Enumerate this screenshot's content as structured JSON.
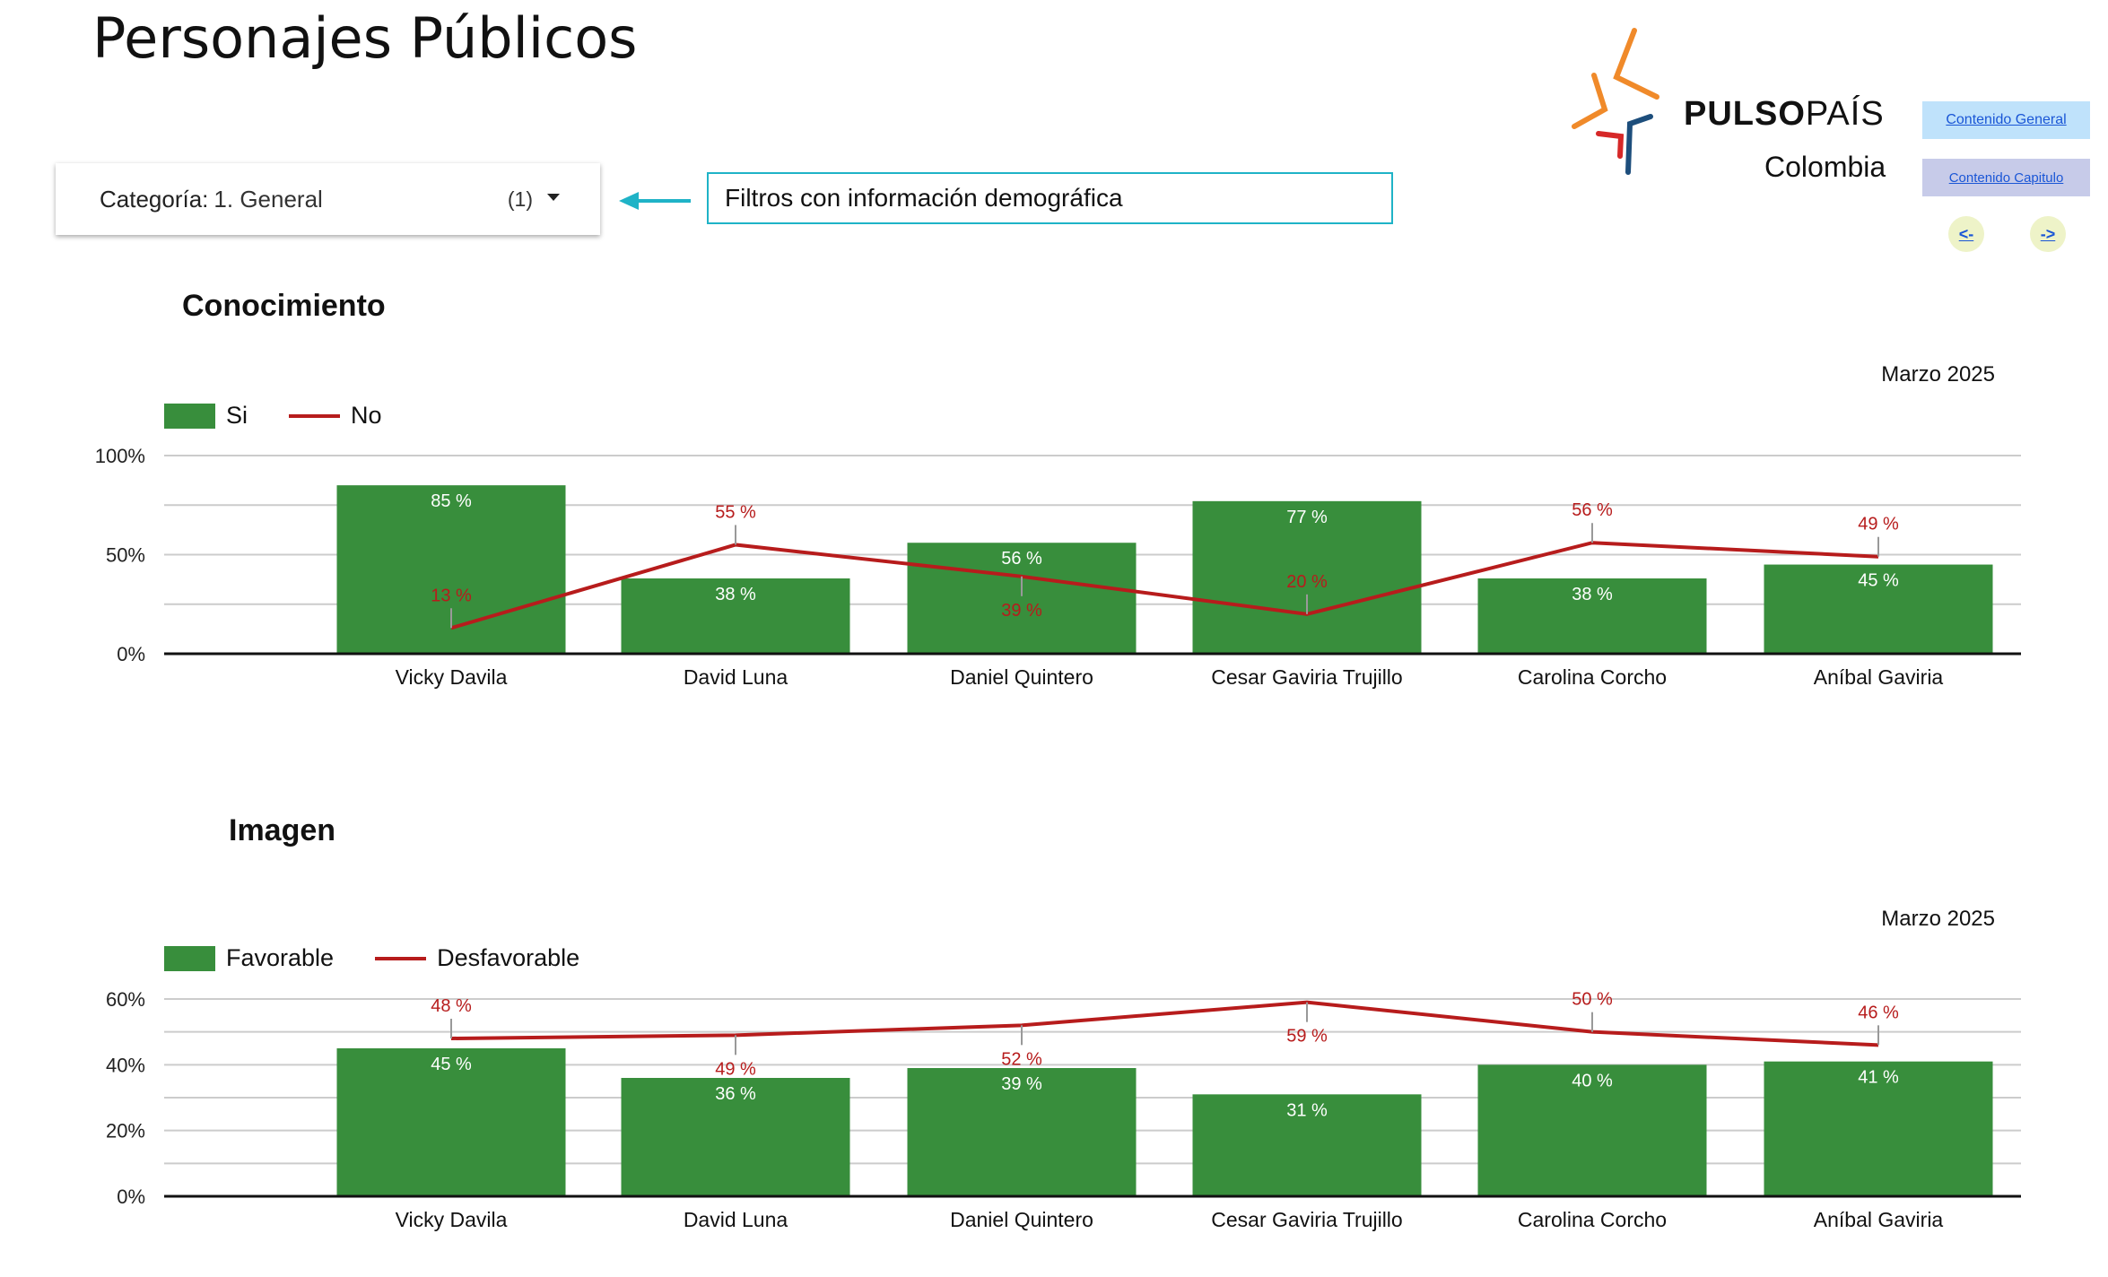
{
  "title": "Personajes Públicos",
  "filter": {
    "label": "Categoría:",
    "value": "1. General",
    "count": "(1)"
  },
  "note": "Filtros con información demográfica",
  "logo": {
    "brand_bold": "PULSO",
    "brand_light": "PAÍS",
    "sub": "Colombia"
  },
  "nav": {
    "general": "Contenido General",
    "chapter": "Contenido Capitulo",
    "prev": "<-",
    "next": "->"
  },
  "colors": {
    "bar": "#388e3c",
    "line": "#b71c1c",
    "accent": "#1fb3c7"
  },
  "chart_data": [
    {
      "type": "bar",
      "title": "Conocimiento",
      "period": "Marzo 2025",
      "categories": [
        "Vicky Davila",
        "David Luna",
        "Daniel Quintero",
        "Cesar Gaviria Trujillo",
        "Carolina Corcho",
        "Aníbal Gaviria"
      ],
      "series": [
        {
          "name": "Si",
          "type": "bar",
          "values": [
            85,
            38,
            56,
            77,
            38,
            45
          ]
        },
        {
          "name": "No",
          "type": "line",
          "values": [
            13,
            55,
            39,
            20,
            56,
            49
          ]
        }
      ],
      "ylim": [
        0,
        100
      ],
      "yticks": [
        "0%",
        "50%",
        "100%"
      ],
      "ytick_values": [
        0,
        50,
        100
      ],
      "grid_step": 25,
      "legend": "top-left"
    },
    {
      "type": "bar",
      "title": "Imagen",
      "period": "Marzo 2025",
      "categories": [
        "Vicky Davila",
        "David Luna",
        "Daniel Quintero",
        "Cesar Gaviria Trujillo",
        "Carolina Corcho",
        "Aníbal Gaviria"
      ],
      "series": [
        {
          "name": "Favorable",
          "type": "bar",
          "values": [
            45,
            36,
            39,
            31,
            40,
            41
          ]
        },
        {
          "name": "Desfavorable",
          "type": "line",
          "values": [
            48,
            49,
            52,
            59,
            50,
            46
          ]
        }
      ],
      "ylim": [
        0,
        60
      ],
      "yticks": [
        "0%",
        "20%",
        "40%",
        "60%"
      ],
      "ytick_values": [
        0,
        20,
        40,
        60
      ],
      "grid_step": 10,
      "legend": "top-left"
    }
  ]
}
